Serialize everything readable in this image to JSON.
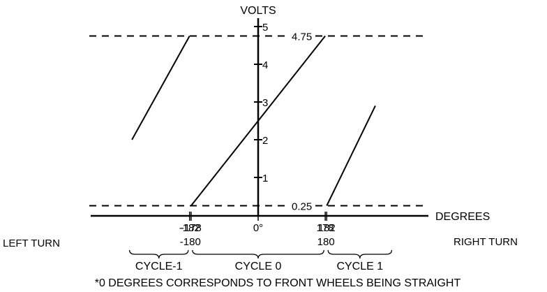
{
  "chart_data": {
    "type": "line",
    "ylabel": "VOLTS",
    "xlabel": "DEGREES",
    "ylim": [
      0,
      5
    ],
    "xlim": [
      -360,
      360
    ],
    "y_ticks": [
      "1",
      "2",
      "3",
      "4",
      "5"
    ],
    "reference_lines": [
      {
        "label": "4.75",
        "value": 4.75
      },
      {
        "label": "0.25",
        "value": 0.25
      }
    ],
    "x_ticks": [
      {
        "label": "-182",
        "value": -182
      },
      {
        "label": "-178",
        "value": -178
      },
      {
        "label": "0°",
        "value": 0
      },
      {
        "label": "178",
        "value": 178
      },
      {
        "label": "182",
        "value": 182
      }
    ],
    "boundary_labels": [
      {
        "label": "-180",
        "value": -180
      },
      {
        "label": "180",
        "value": 180
      }
    ],
    "series": [
      {
        "points": [
          [
            -335,
            2.0
          ],
          [
            -182,
            4.75
          ]
        ]
      },
      {
        "points": [
          [
            -178,
            0.25
          ],
          [
            178,
            4.75
          ]
        ]
      },
      {
        "points": [
          [
            182,
            0.25
          ],
          [
            311,
            2.9
          ]
        ]
      }
    ],
    "cycles": [
      {
        "label": "CYCLE-1",
        "from": -347,
        "to": -180
      },
      {
        "label": "CYCLE 0",
        "from": -180,
        "to": 180
      },
      {
        "label": "CYCLE 1",
        "from": 180,
        "to": 360
      }
    ],
    "side_labels": {
      "left": "LEFT TURN",
      "right": "RIGHT TURN"
    },
    "footnote": "*0 DEGREES CORRESPONDS TO FRONT WHEELS BEING STRAIGHT"
  }
}
